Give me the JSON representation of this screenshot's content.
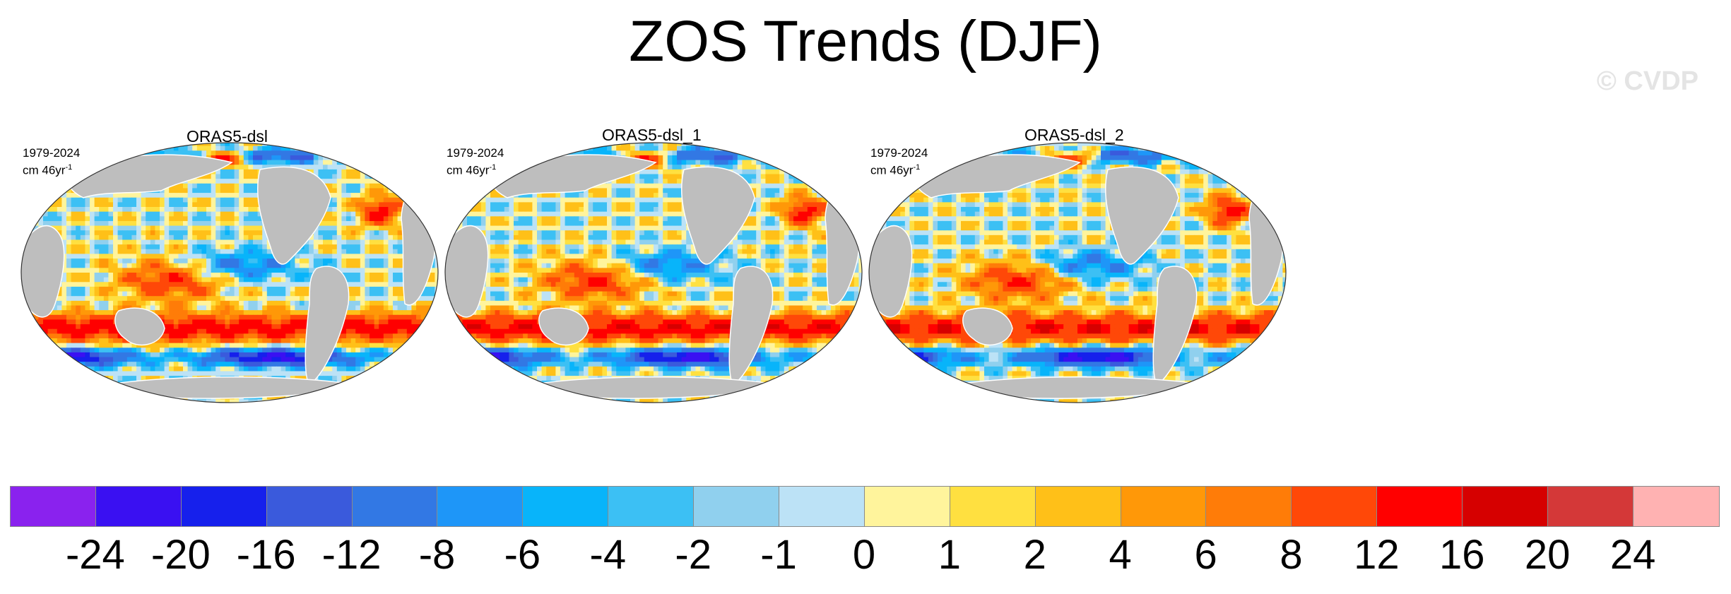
{
  "title": "ZOS Trends (DJF)",
  "watermark": "© CVDP",
  "panels": [
    {
      "label": "ORAS5-dsl",
      "period": "1979-2024",
      "units_prefix": "cm 46yr",
      "units_sup": "-1"
    },
    {
      "label": "ORAS5-dsl_1",
      "period": "1979-2024",
      "units_prefix": "cm 46yr",
      "units_sup": "-1"
    },
    {
      "label": "ORAS5-dsl_2",
      "period": "1979-2024",
      "units_prefix": "cm 46yr",
      "units_sup": "-1"
    }
  ],
  "colorbar": {
    "colors": [
      "#8a22ee",
      "#3a10f2",
      "#1620ec",
      "#3a5adc",
      "#3278e4",
      "#1e96f8",
      "#08b4fa",
      "#3cc0f4",
      "#90d0ee",
      "#bce2f6",
      "#fff49c",
      "#ffe040",
      "#ffc018",
      "#ff9808",
      "#ff7c08",
      "#ff4808",
      "#ff0000",
      "#d60000",
      "#d43838",
      "#ffb2b2"
    ],
    "tick_labels": [
      "-24",
      "-20",
      "-16",
      "-12",
      "-8",
      "-6",
      "-4",
      "-2",
      "-1",
      "0",
      "1",
      "2",
      "4",
      "6",
      "8",
      "12",
      "16",
      "20",
      "24"
    ]
  },
  "land_color": "#bebebe"
}
